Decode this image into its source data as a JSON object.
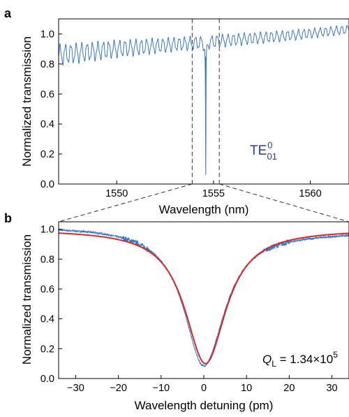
{
  "panel_a": {
    "letter": "a",
    "ylabel": "Normalized transmission",
    "xlabel": "Wavelength (nm)",
    "mode_label_main": "TE",
    "mode_label_sup": "0",
    "mode_label_sub": "01"
  },
  "panel_b": {
    "letter": "b",
    "ylabel": "Normalized transmission",
    "xlabel": "Wavelength detuning (pm)",
    "q_symbol": "Q",
    "q_sub": "L",
    "q_value": " = 1.34×10",
    "q_exp": "5"
  },
  "chart_data": [
    {
      "type": "line",
      "xlabel": "Wavelength (nm)",
      "ylabel": "Normalized transmission",
      "xlim": [
        1547,
        1562
      ],
      "ylim": [
        0,
        1.1
      ],
      "x_ticks": [
        "1550",
        "1555",
        "1560"
      ],
      "x_tick_values": [
        1550,
        1555,
        1560
      ],
      "y_ticks": [
        "0.0",
        "0.2",
        "0.4",
        "0.6",
        "0.8",
        "1.0"
      ],
      "y_tick_values": [
        0.0,
        0.2,
        0.4,
        0.6,
        0.8,
        1.0
      ],
      "zoom_window": [
        1553.9,
        1555.3
      ],
      "annotation": "TE01 0 mode",
      "series": [
        {
          "color": "#3a78c2",
          "baseline_x": [
            1547,
            1550,
            1553,
            1556,
            1559,
            1562
          ],
          "baseline_y": [
            0.86,
            0.9,
            0.93,
            0.96,
            0.99,
            1.03
          ],
          "ripple_amplitude": [
            0.12,
            0.1,
            0.08,
            0.07,
            0.06,
            0.05
          ],
          "ripple_period_nm": 0.28,
          "dip_center": 1554.6,
          "dip_min": 0.06,
          "dip_halfwidth_nm": 0.014
        }
      ]
    },
    {
      "type": "line",
      "xlabel": "Wavelength detuning (pm)",
      "ylabel": "Normalized transmission",
      "xlim": [
        -34,
        34
      ],
      "ylim": [
        0,
        1.05
      ],
      "x_ticks": [
        "−30",
        "−20",
        "−10",
        "0",
        "10",
        "20",
        "30"
      ],
      "x_tick_values": [
        -30,
        -20,
        -10,
        0,
        10,
        20,
        30
      ],
      "y_ticks": [
        "0.0",
        "0.2",
        "0.4",
        "0.6",
        "0.8",
        "1.0"
      ],
      "y_tick_values": [
        0.0,
        0.2,
        0.4,
        0.6,
        0.8,
        1.0
      ],
      "series": [
        {
          "kind": "measured",
          "color": "#3a78c2",
          "center_pm": 0.0,
          "min": 0.085,
          "hwhm_pm": 5.8,
          "asymmetry": -0.03
        },
        {
          "kind": "lorentzian-fit",
          "color": "#d42a2a",
          "center_pm": 0.4,
          "min": 0.1,
          "hwhm_pm": 5.9
        }
      ]
    }
  ]
}
